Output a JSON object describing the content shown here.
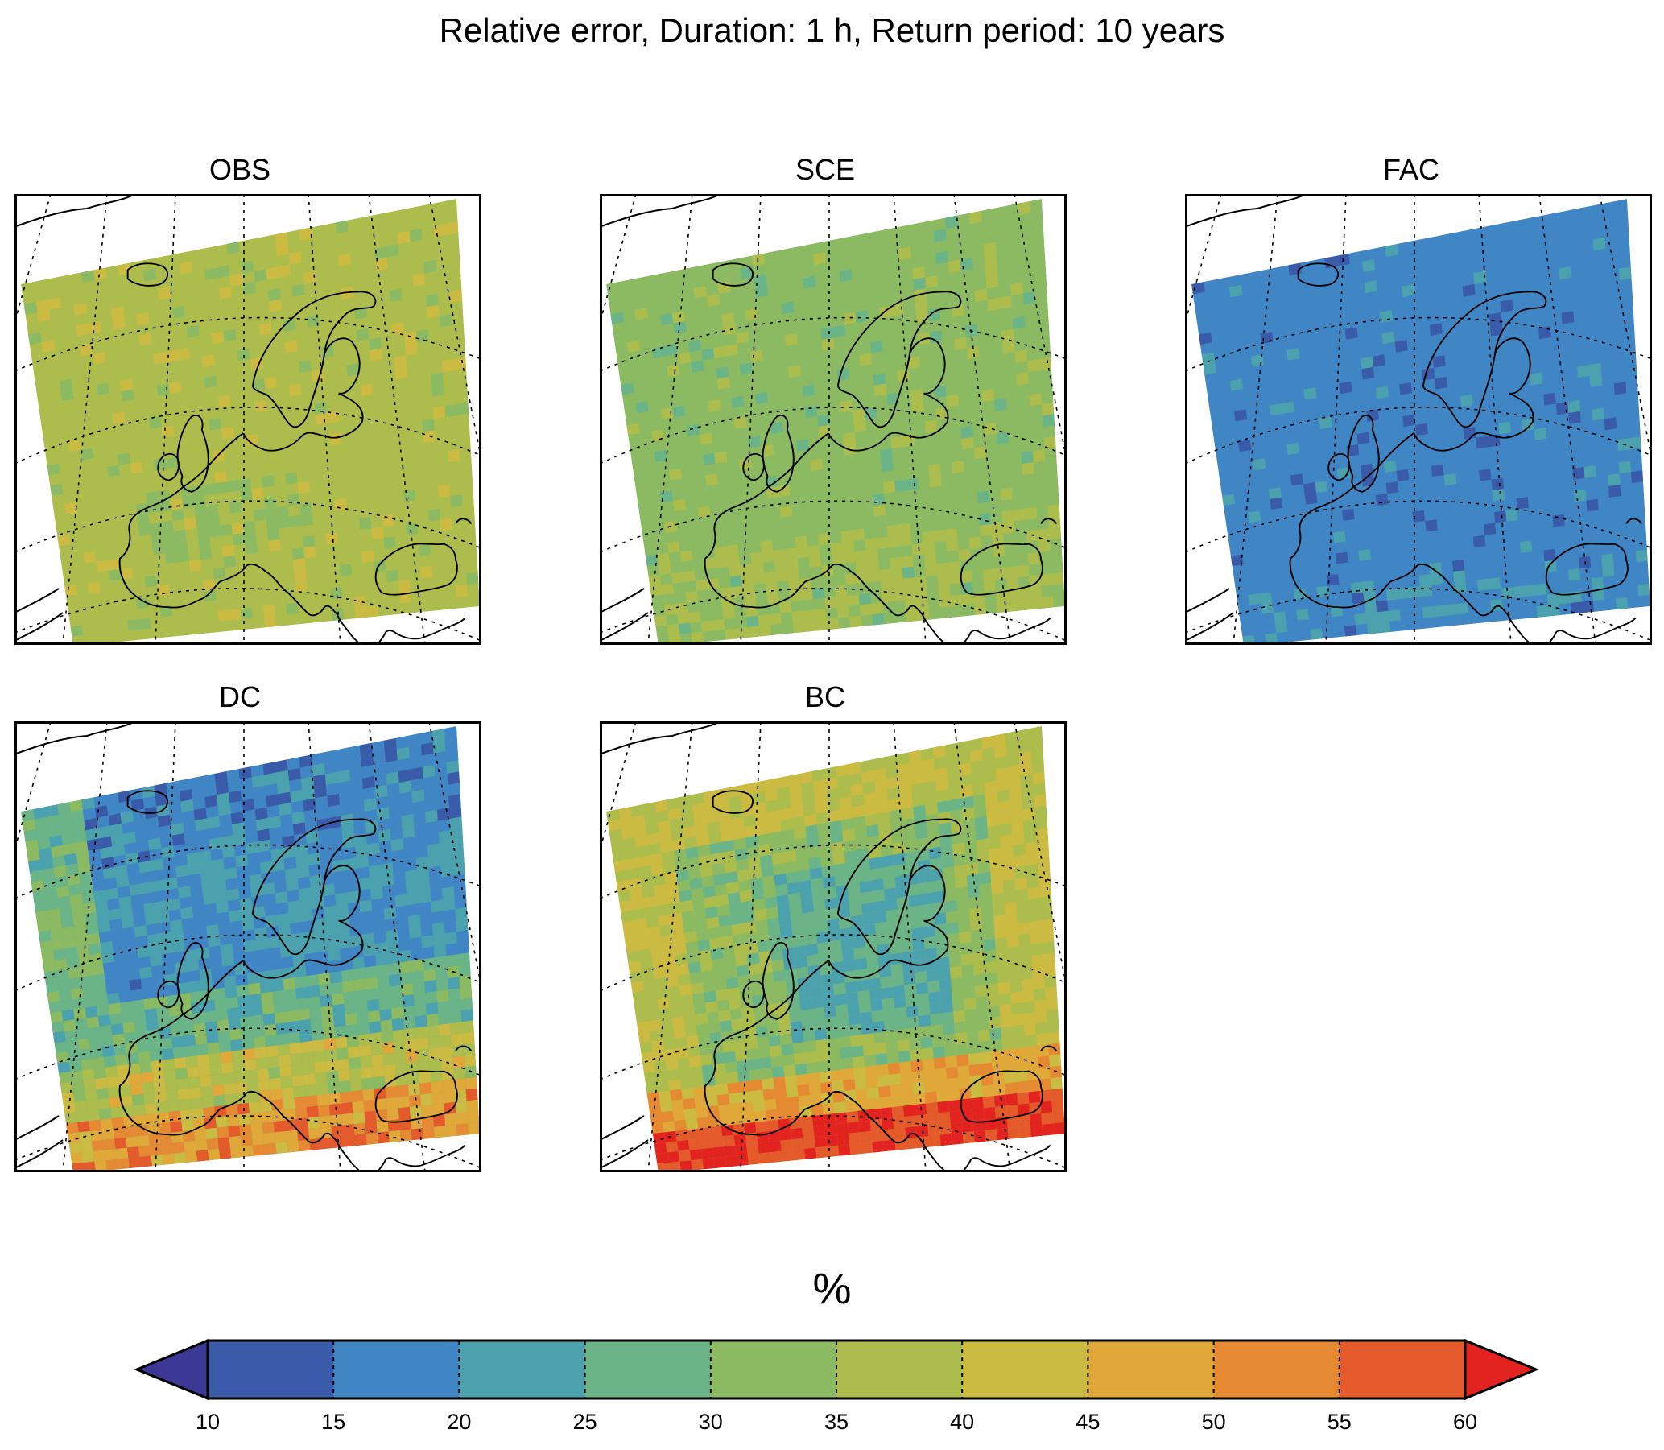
{
  "figure": {
    "title": "Relative error, Duration: 1 h, Return period: 10 years"
  },
  "panels": [
    {
      "id": "obs",
      "title": "OBS",
      "dominant_class": 5,
      "variation": "low",
      "pattern": "uniform-green"
    },
    {
      "id": "sce",
      "title": "SCE",
      "dominant_class": 4,
      "variation": "low",
      "pattern": "uniform-green"
    },
    {
      "id": "fac",
      "title": "FAC",
      "dominant_class": 1,
      "variation": "low",
      "pattern": "uniform-blue"
    },
    {
      "id": "dc",
      "title": "DC",
      "dominant_class": 2,
      "variation": "high",
      "pattern": "blue-north-red-south"
    },
    {
      "id": "bc",
      "title": "BC",
      "dominant_class": 5,
      "variation": "high",
      "pattern": "yellow-edges-red-south"
    }
  ],
  "colorbar": {
    "label": "%",
    "ticks": [
      "10",
      "15",
      "20",
      "25",
      "30",
      "35",
      "40",
      "45",
      "50",
      "55",
      "60"
    ],
    "extend": "both",
    "under_color": "#3b3896",
    "over_color": "#e2231f",
    "colors": [
      "#3a5ba9",
      "#4186c4",
      "#4ba2ae",
      "#6bb487",
      "#8cba62",
      "#adbd4d",
      "#cbbb42",
      "#e0a838",
      "#e58a33",
      "#e45a2a"
    ]
  }
}
